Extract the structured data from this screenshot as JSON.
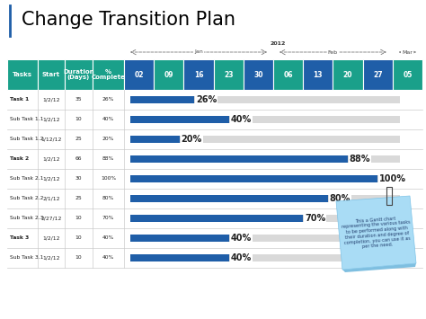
{
  "chart_data": {
    "type": "gantt",
    "title": "Change Transition Plan",
    "columns": [
      "Tasks",
      "Start",
      "Duration\n(Days)",
      "%\nComplete"
    ],
    "categories": [
      "Task 1",
      "Sub Task 1.1",
      "Sub Task 1.2",
      "Task 2",
      "Sub Task 2.1",
      "Sub Task 2.2",
      "Sub Task 2.3",
      "Task 3",
      "Sub Task 3.1"
    ],
    "start": [
      "1/2/12",
      "1/2/12",
      "1/12/12",
      "1/2/12",
      "1/2/12",
      "2/1/12",
      "2/27/12",
      "1/2/12",
      "1/2/12"
    ],
    "duration": [
      35,
      10,
      25,
      66,
      30,
      25,
      10,
      10,
      10
    ],
    "values": [
      26,
      40,
      20,
      88,
      100,
      80,
      70,
      40,
      40
    ],
    "value_labels": [
      "26%",
      "40%",
      "20%",
      "88%",
      "100%",
      "80%",
      "70%",
      "40%",
      "40%"
    ],
    "data_labels": true,
    "color": "#1f5ea8",
    "timeline": {
      "year": "2012",
      "months": [
        {
          "label": "Jan",
          "weeks": [
            "02",
            "09",
            "16",
            "23",
            "30"
          ]
        },
        {
          "label": "Feb",
          "weeks": [
            "06",
            "13",
            "20",
            "27"
          ]
        },
        {
          "label": "Mar",
          "weeks": [
            "05"
          ]
        }
      ]
    },
    "note": "This a Gantt chart representing the various tasks to be performed along with their duration and degree of completion, you can use it as per the need."
  }
}
